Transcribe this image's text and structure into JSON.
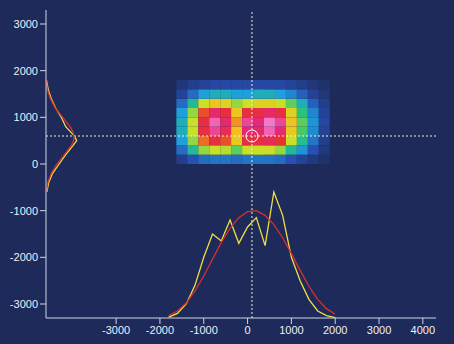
{
  "chart_data": {
    "type": "heatmap",
    "xlim": [
      -4600,
      4300
    ],
    "xticks": [
      -3000,
      -2000,
      -1000,
      0,
      1000,
      2000,
      3000,
      4000
    ],
    "ylim": [
      -3300,
      3300
    ],
    "yticks": [
      -3000,
      -2000,
      -1000,
      0,
      1000,
      2000,
      3000
    ],
    "heatmap": {
      "x": [
        -1500,
        -1250,
        -1000,
        -750,
        -500,
        -250,
        0,
        250,
        500,
        750,
        1000,
        1250,
        1500,
        1750
      ],
      "y": [
        100,
        300,
        500,
        700,
        900,
        1100,
        1300,
        1500,
        1700
      ],
      "z": [
        [
          8,
          15,
          20,
          22,
          22,
          20,
          22,
          22,
          22,
          20,
          15,
          10,
          6,
          3
        ],
        [
          20,
          40,
          55,
          60,
          58,
          50,
          60,
          60,
          62,
          55,
          40,
          28,
          15,
          6
        ],
        [
          30,
          55,
          78,
          85,
          80,
          68,
          85,
          85,
          88,
          82,
          60,
          42,
          22,
          8
        ],
        [
          35,
          60,
          85,
          95,
          88,
          72,
          92,
          90,
          98,
          92,
          68,
          48,
          26,
          10
        ],
        [
          35,
          60,
          85,
          98,
          90,
          75,
          95,
          92,
          100,
          95,
          70,
          50,
          28,
          12
        ],
        [
          30,
          55,
          80,
          90,
          85,
          70,
          85,
          85,
          90,
          85,
          65,
          45,
          25,
          10
        ],
        [
          20,
          40,
          60,
          70,
          65,
          55,
          60,
          65,
          65,
          60,
          50,
          35,
          18,
          8
        ],
        [
          10,
          20,
          30,
          35,
          35,
          30,
          30,
          35,
          35,
          30,
          25,
          18,
          10,
          5
        ],
        [
          5,
          8,
          10,
          12,
          12,
          12,
          12,
          12,
          12,
          12,
          10,
          8,
          5,
          3
        ]
      ]
    },
    "x_profile": {
      "x": [
        -1800,
        -1600,
        -1400,
        -1200,
        -1000,
        -800,
        -600,
        -400,
        -200,
        0,
        200,
        400,
        600,
        800,
        1000,
        1200,
        1400,
        1600,
        1800,
        2000
      ],
      "series": [
        {
          "color": "#f0e040",
          "values": [
            -3280,
            -3200,
            -3000,
            -2600,
            -2000,
            -1500,
            -1650,
            -1200,
            -1700,
            -1350,
            -1150,
            -1750,
            -600,
            -1100,
            -2000,
            -2500,
            -2900,
            -3150,
            -3250,
            -3290
          ]
        },
        {
          "color": "#d83030",
          "values": [
            -3250,
            -3150,
            -2980,
            -2720,
            -2400,
            -2040,
            -1680,
            -1380,
            -1150,
            -1020,
            -1000,
            -1100,
            -1300,
            -1580,
            -1920,
            -2280,
            -2620,
            -2900,
            -3100,
            -3220
          ]
        }
      ]
    },
    "y_profile": {
      "y": [
        -600,
        -400,
        -200,
        0,
        200,
        400,
        500,
        600,
        700,
        800,
        1000,
        1200,
        1400,
        1600,
        1800
      ],
      "series": [
        {
          "color": "#f0e040",
          "values": [
            -4580,
            -4540,
            -4450,
            -4300,
            -4150,
            -3980,
            -3900,
            -3950,
            -4050,
            -4150,
            -4250,
            -4380,
            -4480,
            -4550,
            -4590
          ]
        },
        {
          "color": "#d83030",
          "values": [
            -4590,
            -4560,
            -4480,
            -4350,
            -4180,
            -4020,
            -3970,
            -3960,
            -3990,
            -4050,
            -4220,
            -4390,
            -4500,
            -4570,
            -4595
          ]
        }
      ]
    },
    "crosshair": {
      "x": 100,
      "y": 600
    }
  }
}
